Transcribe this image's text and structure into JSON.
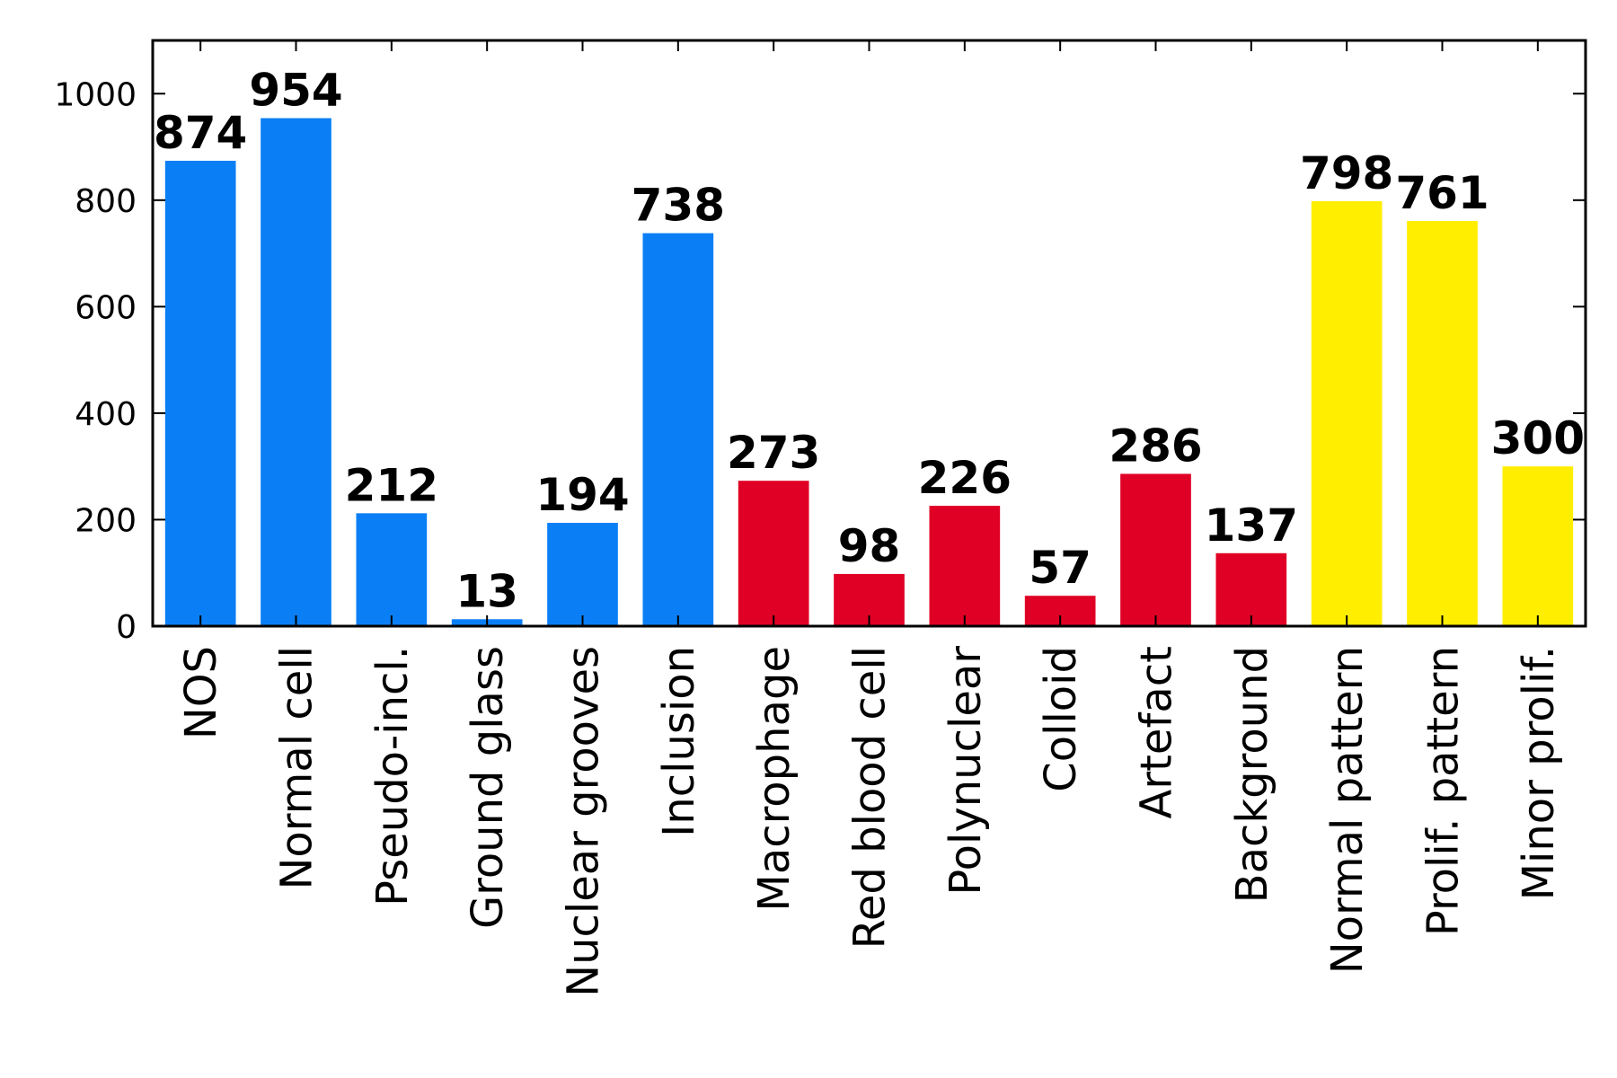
{
  "chart_data": {
    "type": "bar",
    "title": "",
    "xlabel": "",
    "ylabel": "",
    "ylim": [
      0,
      1100
    ],
    "yticks": [
      0,
      200,
      400,
      600,
      800,
      1000
    ],
    "grid": false,
    "legend": "none",
    "categories": [
      "NOS",
      "Normal cell",
      "Pseudo-incl.",
      "Ground glass",
      "Nuclear grooves",
      "Inclusion",
      "Macrophage",
      "Red blood cell",
      "Polynuclear",
      "Colloid",
      "Artefact",
      "Background",
      "Normal pattern",
      "Prolif. pattern",
      "Minor prolif."
    ],
    "values": [
      874,
      954,
      212,
      13,
      194,
      738,
      273,
      98,
      226,
      57,
      286,
      137,
      798,
      761,
      300
    ],
    "value_labels": [
      "874",
      "954",
      "212",
      "13",
      "194",
      "738",
      "273",
      "98",
      "226",
      "57",
      "286",
      "137",
      "798",
      "761",
      "300"
    ],
    "bar_colors": [
      "#0a7ff5",
      "#0a7ff5",
      "#0a7ff5",
      "#0a7ff5",
      "#0a7ff5",
      "#0a7ff5",
      "#e00025",
      "#e00025",
      "#e00025",
      "#e00025",
      "#e00025",
      "#e00025",
      "#ffee00",
      "#ffee00",
      "#ffee00"
    ]
  }
}
